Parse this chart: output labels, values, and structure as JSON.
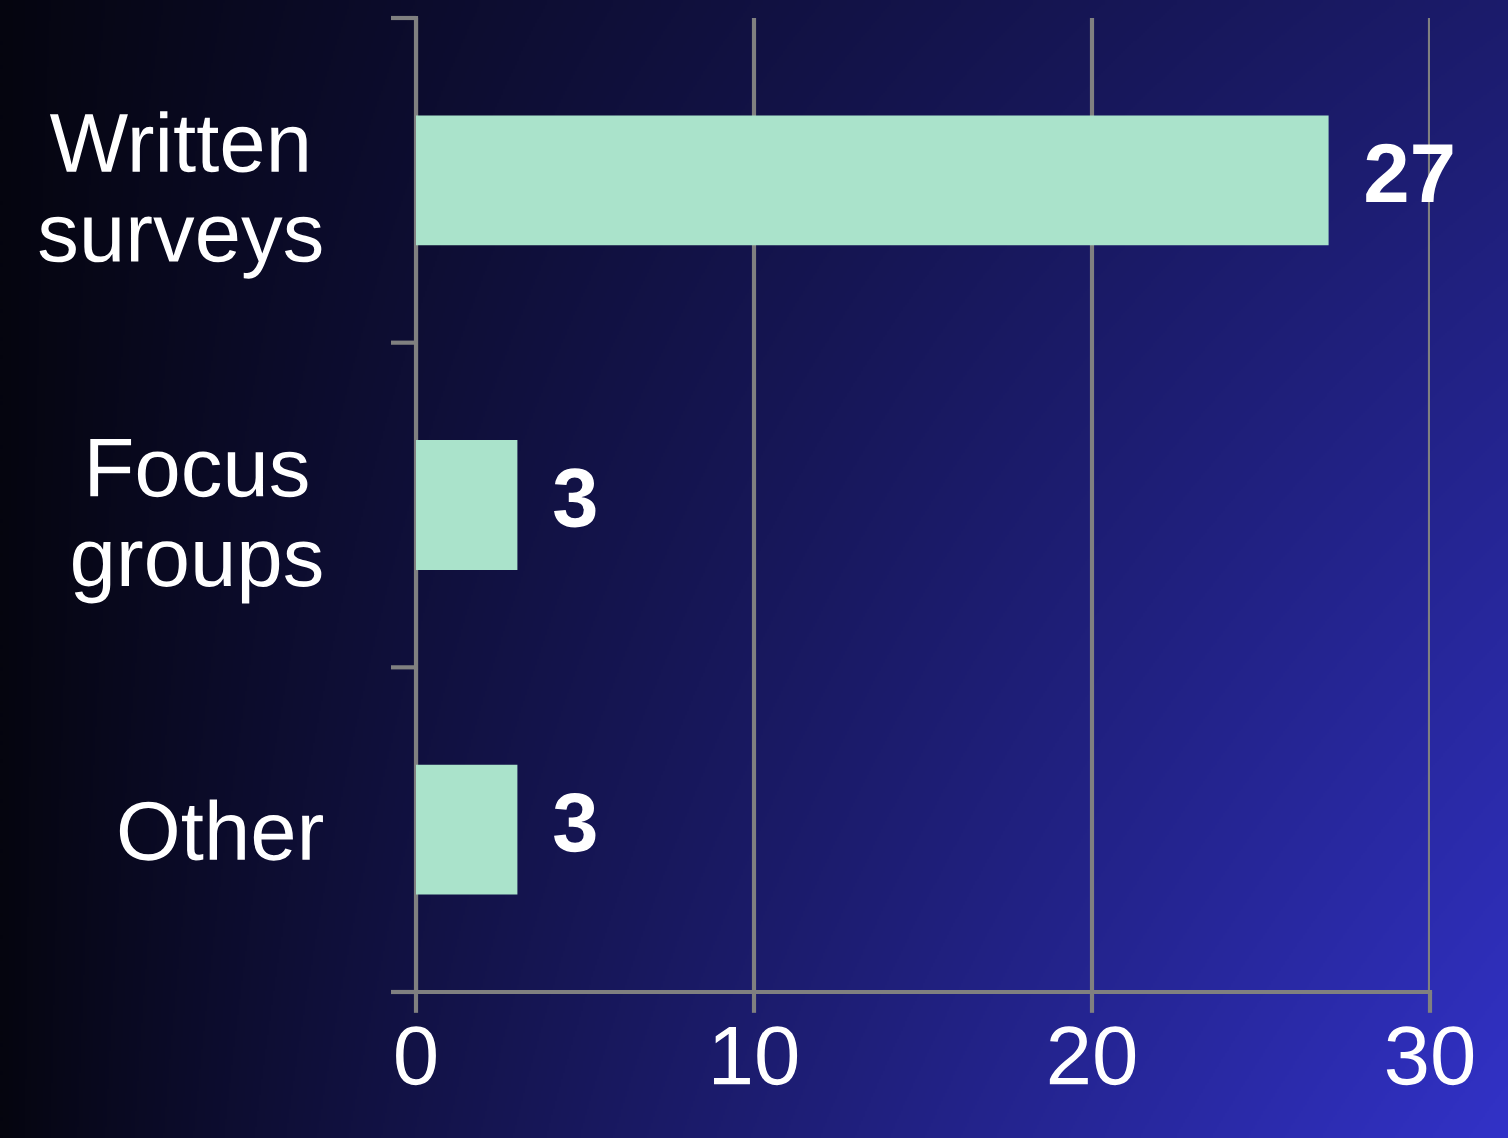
{
  "chart_data": {
    "type": "bar",
    "orientation": "horizontal",
    "categories": [
      "Written\nsurveys",
      "Focus\ngroups",
      "Other"
    ],
    "values": [
      27,
      3,
      3
    ],
    "color": "#aae3cb",
    "xlim": [
      0,
      30
    ],
    "xticks": [
      0,
      10,
      20,
      30
    ],
    "grid": "x",
    "data_labels": true
  }
}
